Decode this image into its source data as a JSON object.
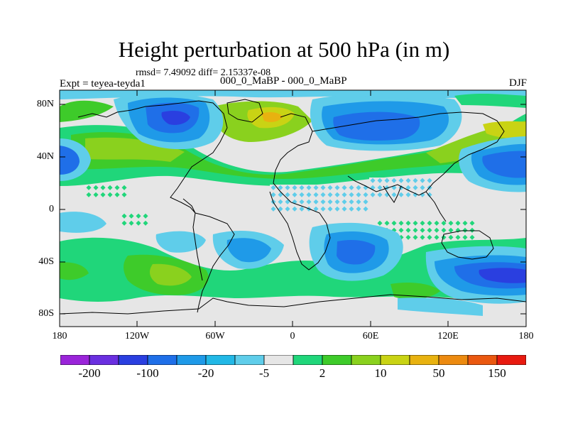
{
  "title": "Height perturbation at 500 hPa (in m)",
  "stats_line": "rmsd= 7.49092 diff= 2.15337e-08",
  "experiment": "Expt = teyea-teyda1",
  "case_label": "000_0_MaBP - 000_0_MaBP",
  "season": "DJF",
  "y_ticks": [
    "80N",
    "40N",
    "0",
    "40S",
    "80S"
  ],
  "x_ticks": [
    "180",
    "120W",
    "60W",
    "0",
    "60E",
    "120E",
    "180"
  ],
  "colorbar": {
    "colors": [
      "#9a24d9",
      "#6a2fe0",
      "#2a3fe0",
      "#1f6fe8",
      "#1f9ae8",
      "#22b8e6",
      "#5fcdea",
      "#e6e6e6",
      "#20d67a",
      "#3ecb2a",
      "#8ad11e",
      "#c9d314",
      "#e8b210",
      "#ec8a10",
      "#ea5810",
      "#e81a10"
    ],
    "labels": [
      "-200",
      "-100",
      "-20",
      "-5",
      "2",
      "10",
      "50",
      "150"
    ]
  },
  "legend_colors": {
    "strong_neg": "#2a3fe0",
    "neg": "#1f6fe8",
    "weak_neg": "#1f9ae8",
    "slight_neg": "#5fcdea",
    "neutral": "#e6e6e6",
    "slight_pos": "#20d67a",
    "pos": "#3ecb2a",
    "strong_pos": "#8ad11e",
    "very_strong_pos": "#c9d314",
    "extreme_pos": "#e8b210"
  }
}
